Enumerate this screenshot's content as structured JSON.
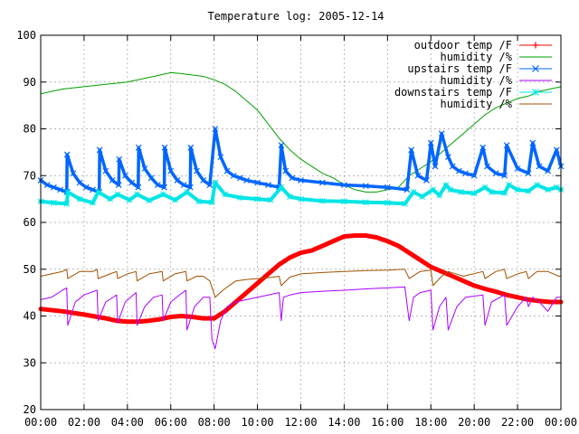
{
  "chart_data": {
    "type": "line",
    "title": "Temperature log: 2005-12-14",
    "xlabel": "",
    "ylabel": "",
    "xlim": [
      0,
      24
    ],
    "ylim": [
      20,
      100
    ],
    "grid": true,
    "legend_position": "top-right",
    "x_ticks": [
      "00:00",
      "02:00",
      "04:00",
      "06:00",
      "08:00",
      "10:00",
      "12:00",
      "14:00",
      "16:00",
      "18:00",
      "20:00",
      "22:00",
      "00:00"
    ],
    "y_ticks": [
      20,
      30,
      40,
      50,
      60,
      70,
      80,
      90,
      100
    ],
    "series": [
      {
        "name": "outdoor temp /F",
        "color": "#ff0000",
        "marker": "plus",
        "x": [
          0,
          1,
          2,
          3,
          3.5,
          4,
          4.5,
          5,
          5.5,
          6,
          6.5,
          7,
          7.5,
          8,
          8.5,
          9,
          9.5,
          10,
          10.5,
          11,
          11.5,
          12,
          12.5,
          13,
          13.5,
          14,
          14.5,
          15,
          15.5,
          16,
          16.5,
          17,
          17.5,
          18,
          18.5,
          19,
          19.5,
          20,
          20.5,
          21,
          21.5,
          22,
          22.5,
          23,
          23.5,
          24
        ],
        "y": [
          41.5,
          41,
          40.3,
          39.5,
          39,
          38.8,
          38.8,
          39,
          39.3,
          39.8,
          40,
          39.8,
          39.5,
          39.5,
          41,
          43,
          45,
          47,
          49,
          51,
          52.5,
          53.5,
          54,
          55,
          56,
          57,
          57.2,
          57.2,
          56.8,
          56,
          55,
          53.5,
          52,
          50.5,
          49.5,
          48.5,
          47.5,
          46.5,
          45.8,
          45.2,
          44.5,
          44,
          43.5,
          43.2,
          43,
          43
        ]
      },
      {
        "name": "humidity /%",
        "color": "#00a000",
        "marker": "none",
        "x": [
          0,
          1,
          2,
          3,
          4,
          5,
          5.5,
          6,
          6.5,
          7,
          7.5,
          8,
          8.5,
          9,
          9.5,
          10,
          10.5,
          11,
          11.5,
          12,
          12.5,
          13,
          13.5,
          14,
          14.5,
          15,
          15.5,
          16,
          16.5,
          17,
          17.5,
          18,
          18.5,
          19,
          19.5,
          20,
          20.5,
          21,
          21.5,
          22,
          22.5,
          23,
          23.5,
          24
        ],
        "y": [
          87.5,
          88.5,
          89,
          89.5,
          90,
          91,
          91.5,
          92,
          91.8,
          91.5,
          91.2,
          90.5,
          89.5,
          88,
          86,
          84,
          81,
          78,
          75.5,
          73.5,
          72,
          70.5,
          69.5,
          68,
          67,
          66.5,
          66.5,
          67,
          67.5,
          70,
          71.5,
          73,
          75,
          77,
          79,
          81,
          83,
          84.5,
          85.5,
          86.5,
          87,
          88,
          88.5,
          89
        ]
      },
      {
        "name": "upstairs temp /F",
        "color": "#0066ff",
        "marker": "x",
        "x": [
          0,
          0.3,
          0.6,
          0.9,
          1.2,
          1.22,
          1.5,
          1.8,
          2.1,
          2.4,
          2.7,
          2.72,
          3.0,
          3.3,
          3.6,
          3.62,
          3.9,
          4.2,
          4.5,
          4.52,
          4.8,
          5.1,
          5.4,
          5.7,
          5.72,
          6.0,
          6.3,
          6.6,
          6.9,
          6.92,
          7.2,
          7.5,
          7.8,
          8.05,
          8.3,
          8.6,
          8.9,
          9.2,
          9.5,
          10,
          10.5,
          11,
          11.1,
          11.3,
          11.6,
          12,
          13,
          14,
          15,
          16,
          16.9,
          17.1,
          17.4,
          17.8,
          18.0,
          18.2,
          18.5,
          18.8,
          19.0,
          19.3,
          19.6,
          20.0,
          20.4,
          20.6,
          21.0,
          21.4,
          21.5,
          22.0,
          22.5,
          22.7,
          23.0,
          23.4,
          23.8,
          24
        ],
        "y": [
          69,
          68,
          67.5,
          67,
          66.5,
          74.5,
          70.5,
          68.5,
          67.5,
          67,
          66.5,
          75.5,
          71,
          69,
          68,
          73.5,
          70,
          68.5,
          67.5,
          76,
          71.5,
          69.5,
          68,
          67.5,
          76,
          71,
          69,
          68,
          67.5,
          76,
          71,
          69,
          68,
          80,
          74,
          71,
          70,
          69.5,
          69,
          68.5,
          68,
          67.5,
          76.5,
          71,
          69.5,
          69,
          68.5,
          68,
          67.8,
          67.5,
          67,
          75.5,
          70,
          69,
          77,
          72,
          79,
          74,
          72,
          71,
          70.5,
          70,
          76,
          72,
          70.5,
          70,
          76.5,
          71.5,
          70.5,
          77,
          72,
          71,
          75.5,
          72
        ]
      },
      {
        "name": "humidity /%",
        "color": "#aa00ff",
        "marker": "none",
        "x": [
          0,
          0.5,
          1.0,
          1.2,
          1.25,
          1.6,
          2.0,
          2.6,
          2.65,
          3.0,
          3.5,
          3.55,
          3.9,
          4.4,
          4.45,
          4.8,
          5.2,
          5.6,
          5.65,
          6.0,
          6.4,
          6.7,
          6.75,
          7.1,
          7.5,
          7.8,
          7.9,
          8.05,
          8.3,
          8.6,
          9.0,
          9.5,
          10,
          10.5,
          11,
          11.1,
          11.2,
          11.5,
          12,
          13,
          14,
          15,
          16,
          16.8,
          17.0,
          17.2,
          17.5,
          18.0,
          18.1,
          18.4,
          18.7,
          18.8,
          19.2,
          19.6,
          20.4,
          20.5,
          20.8,
          21.4,
          21.5,
          22.0,
          22.4,
          22.5,
          22.7,
          23.0,
          23.4,
          23.8,
          24
        ],
        "y": [
          43.5,
          44,
          45.5,
          46,
          38,
          43,
          44.5,
          45.5,
          39,
          43,
          44.5,
          38.5,
          43,
          45,
          38,
          42,
          44,
          44.5,
          39,
          43,
          44.5,
          45.5,
          37,
          42,
          44,
          44,
          35,
          33,
          39,
          42,
          43,
          43.5,
          44,
          44.5,
          45,
          39,
          44,
          44.5,
          45,
          45.3,
          45.5,
          45.8,
          46,
          46.2,
          39,
          44,
          45,
          45.5,
          37,
          42,
          44,
          37,
          42,
          44,
          44.5,
          38,
          43,
          44.5,
          38,
          42,
          44,
          42,
          44,
          43,
          41,
          44,
          44
        ]
      },
      {
        "name": "downstairs temp /F",
        "color": "#00e5e5",
        "marker": "star",
        "x": [
          0,
          0.6,
          1.2,
          1.25,
          1.8,
          2.4,
          2.65,
          3.2,
          3.55,
          4.1,
          4.45,
          5.0,
          5.65,
          6.2,
          6.75,
          7.3,
          7.9,
          8.05,
          8.5,
          9.2,
          10,
          10.6,
          11.1,
          11.5,
          12,
          13,
          14,
          15,
          16,
          16.8,
          17.2,
          17.6,
          18.1,
          18.4,
          18.7,
          18.9,
          19.4,
          20,
          20.5,
          20.8,
          21.4,
          21.6,
          22.0,
          22.5,
          22.9,
          23.4,
          23.8,
          24
        ],
        "y": [
          64.5,
          64.2,
          64,
          66.5,
          65,
          64.2,
          66.5,
          65,
          66,
          64.8,
          66,
          64.7,
          66,
          64.8,
          66.5,
          64.5,
          64.3,
          68.5,
          66,
          65.3,
          65,
          64.8,
          67.5,
          65.5,
          65,
          64.6,
          64.5,
          64.3,
          64.2,
          64,
          66.5,
          65.5,
          67,
          65.8,
          68,
          67,
          66.5,
          66.2,
          67.5,
          66.5,
          66.3,
          68,
          67,
          66.7,
          68,
          67,
          67.5,
          67
        ]
      },
      {
        "name": "humidity /%",
        "color": "#a05000",
        "marker": "none",
        "x": [
          0,
          0.5,
          1.0,
          1.2,
          1.25,
          1.8,
          2.4,
          2.6,
          2.65,
          3.2,
          3.5,
          3.55,
          4.0,
          4.4,
          4.45,
          5.0,
          5.6,
          5.65,
          6.2,
          6.7,
          6.75,
          7.2,
          7.5,
          7.8,
          8.05,
          8.4,
          9.0,
          9.5,
          10,
          10.5,
          11,
          11.1,
          11.5,
          12,
          13,
          14,
          15,
          16,
          16.8,
          17.0,
          17.5,
          18.0,
          18.1,
          18.5,
          18.8,
          19.5,
          20.4,
          20.5,
          21,
          21.4,
          21.5,
          22.0,
          22.4,
          22.5,
          22.9,
          23.4,
          23.9,
          24
        ],
        "y": [
          48.5,
          49,
          49.5,
          50,
          48,
          49.5,
          49.5,
          50,
          48,
          49,
          49.5,
          48,
          49,
          49.5,
          47.5,
          49,
          49.5,
          47.5,
          49,
          49.5,
          47.5,
          48.5,
          48.5,
          47.5,
          44,
          45.5,
          47.5,
          47.8,
          48,
          48.2,
          48.5,
          46.5,
          48.3,
          49,
          49.3,
          49.5,
          49.7,
          49.8,
          50,
          48,
          49.5,
          49.8,
          46.5,
          48.5,
          49.5,
          48.5,
          49.5,
          48,
          49.5,
          50,
          48,
          49,
          49.5,
          48,
          49.5,
          49.5,
          48.5,
          48.5
        ]
      }
    ]
  }
}
